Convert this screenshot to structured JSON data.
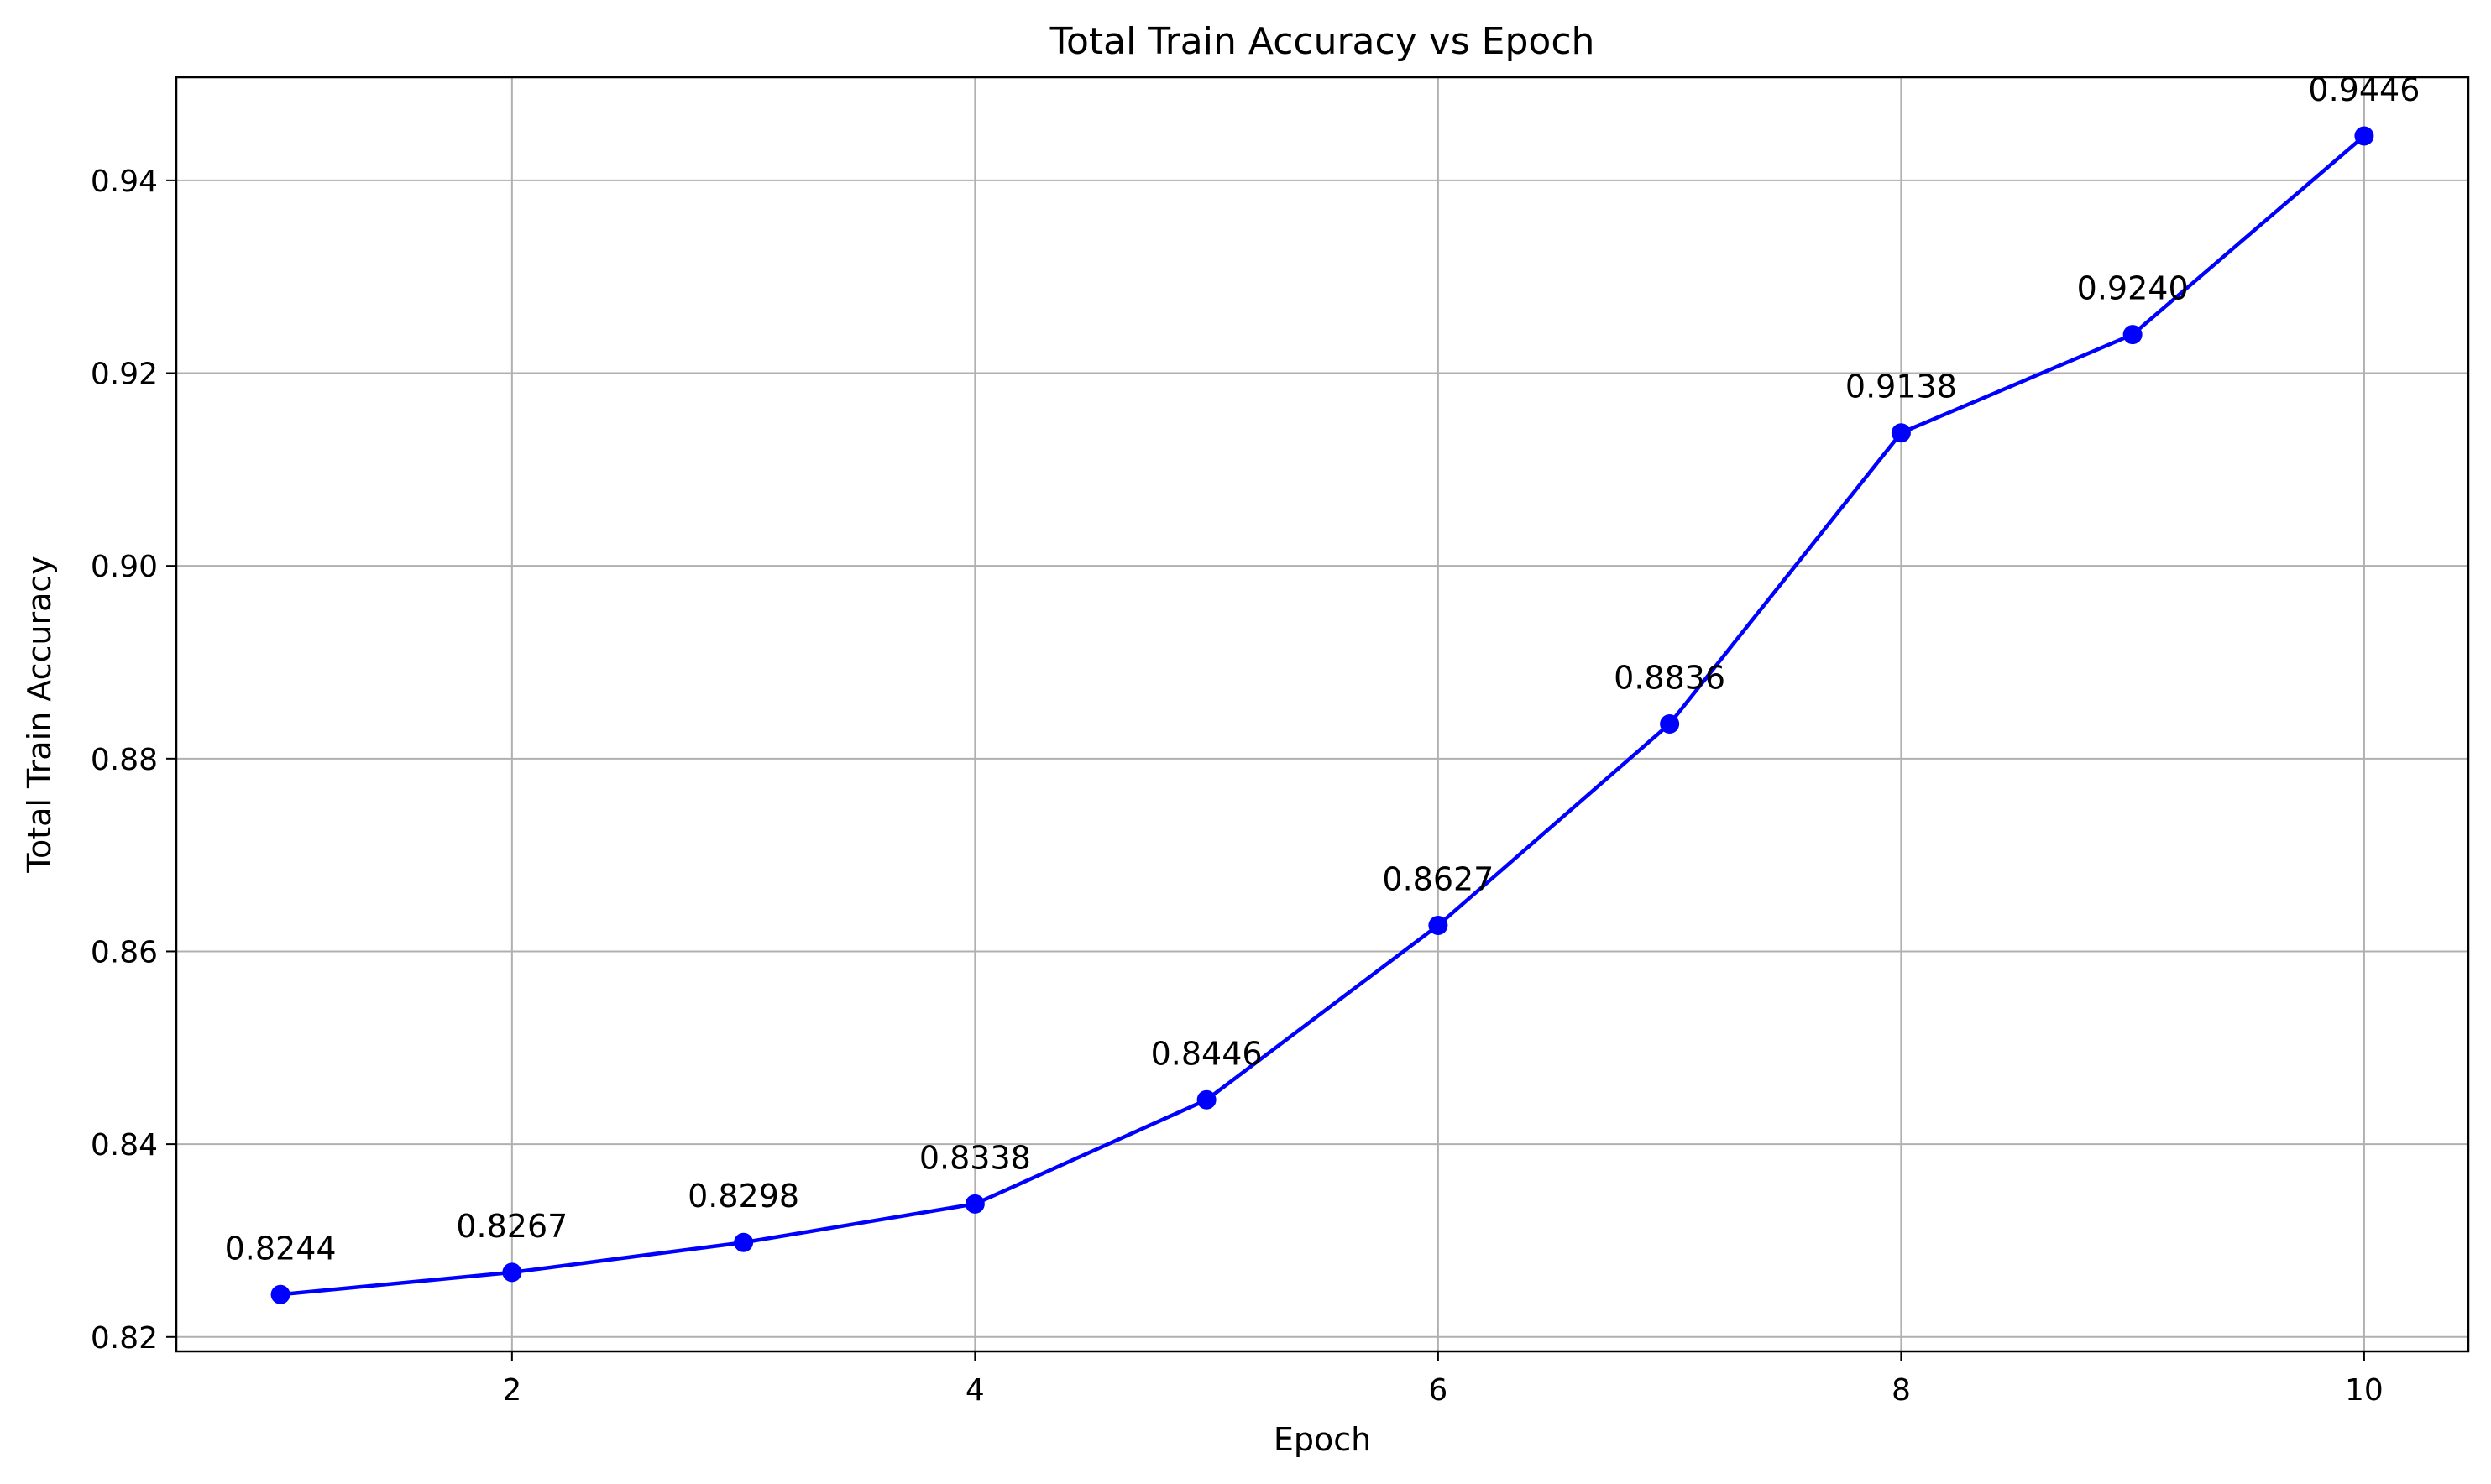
{
  "chart_data": {
    "type": "line",
    "title": "Total Train Accuracy vs Epoch",
    "xlabel": "Epoch",
    "ylabel": "Total Train Accuracy",
    "xlim": [
      0.55,
      10.45
    ],
    "ylim": [
      0.8185,
      0.9507
    ],
    "xticks": [
      2,
      4,
      6,
      8,
      10
    ],
    "xtick_labels": [
      "2",
      "4",
      "6",
      "8",
      "10"
    ],
    "yticks": [
      0.82,
      0.84,
      0.86,
      0.88,
      0.9,
      0.92,
      0.94
    ],
    "ytick_labels": [
      "0.82",
      "0.84",
      "0.86",
      "0.88",
      "0.90",
      "0.92",
      "0.94"
    ],
    "grid": true,
    "series": [
      {
        "color": "#0000ff",
        "marker": "circle",
        "x": [
          1,
          2,
          3,
          4,
          5,
          6,
          7,
          8,
          9,
          10
        ],
        "values": [
          0.8244,
          0.8267,
          0.8298,
          0.8338,
          0.8446,
          0.8627,
          0.8836,
          0.9138,
          0.924,
          0.9446
        ],
        "labels": [
          "0.8244",
          "0.8267",
          "0.8298",
          "0.8338",
          "0.8446",
          "0.8627",
          "0.8836",
          "0.9138",
          "0.9240",
          "0.9446"
        ]
      }
    ]
  }
}
